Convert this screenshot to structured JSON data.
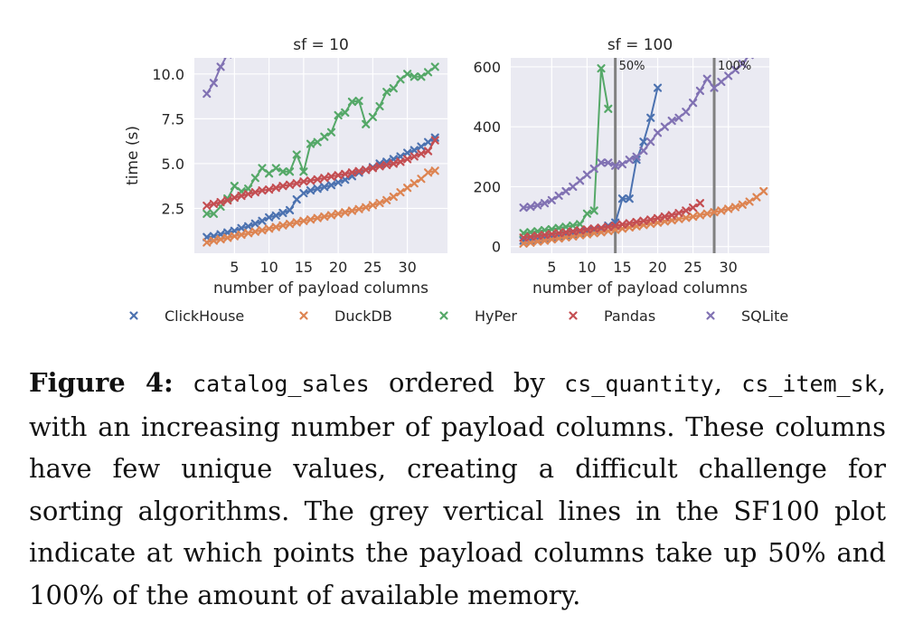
{
  "chart_data": [
    {
      "type": "line",
      "title": "sf = 10",
      "xlabel": "number of payload columns",
      "ylabel": "time (s)",
      "xticks": [
        5,
        10,
        15,
        20,
        25,
        30
      ],
      "yticks": [
        2.5,
        5.0,
        7.5,
        10.0
      ],
      "ytick_labels": [
        "2.5",
        "5.0",
        "7.5",
        "10.0"
      ],
      "xlim": [
        -0.8,
        35.8
      ],
      "ylim": [
        0,
        10.9
      ],
      "grid": true,
      "vlines": [],
      "series": [
        {
          "name": "ClickHouse",
          "color": "#4c72b0",
          "x": [
            1,
            2,
            3,
            4,
            5,
            6,
            7,
            8,
            9,
            10,
            11,
            12,
            13,
            14,
            15,
            16,
            17,
            18,
            19,
            20,
            21,
            22,
            23,
            24,
            25,
            26,
            27,
            28,
            29,
            30,
            31,
            32,
            33,
            34
          ],
          "y": [
            0.9,
            0.95,
            1.05,
            1.15,
            1.25,
            1.4,
            1.5,
            1.65,
            1.8,
            2.0,
            2.1,
            2.25,
            2.4,
            3.0,
            3.35,
            3.5,
            3.6,
            3.7,
            3.8,
            3.95,
            4.1,
            4.3,
            4.5,
            4.65,
            4.8,
            5.0,
            5.1,
            5.25,
            5.4,
            5.6,
            5.75,
            5.95,
            6.2,
            6.45
          ]
        },
        {
          "name": "DuckDB",
          "color": "#dd8452",
          "x": [
            1,
            2,
            3,
            4,
            5,
            6,
            7,
            8,
            9,
            10,
            11,
            12,
            13,
            14,
            15,
            16,
            17,
            18,
            19,
            20,
            21,
            22,
            23,
            24,
            25,
            26,
            27,
            28,
            29,
            30,
            31,
            32,
            33,
            34
          ],
          "y": [
            0.6,
            0.7,
            0.78,
            0.86,
            0.95,
            1.03,
            1.12,
            1.2,
            1.28,
            1.37,
            1.46,
            1.55,
            1.63,
            1.72,
            1.8,
            1.88,
            1.96,
            2.04,
            2.12,
            2.2,
            2.28,
            2.37,
            2.46,
            2.56,
            2.68,
            2.8,
            2.96,
            3.15,
            3.4,
            3.65,
            3.9,
            4.15,
            4.5,
            4.6
          ]
        },
        {
          "name": "HyPer",
          "color": "#55a868",
          "x": [
            1,
            2,
            3,
            4,
            5,
            6,
            7,
            8,
            9,
            10,
            11,
            12,
            13,
            14,
            15,
            16,
            17,
            18,
            19,
            20,
            21,
            22,
            23,
            24,
            25,
            26,
            27,
            28,
            29,
            30,
            31,
            32,
            33,
            34
          ],
          "y": [
            2.2,
            2.2,
            2.6,
            3.05,
            3.75,
            3.45,
            3.6,
            4.2,
            4.75,
            4.45,
            4.75,
            4.55,
            4.55,
            5.5,
            4.55,
            6.1,
            6.2,
            6.5,
            6.75,
            7.7,
            7.85,
            8.45,
            8.5,
            7.2,
            7.6,
            8.2,
            9.0,
            9.2,
            9.7,
            10.0,
            9.85,
            9.85,
            10.1,
            10.4
          ]
        },
        {
          "name": "Pandas",
          "color": "#c44e52",
          "x": [
            1,
            2,
            3,
            4,
            5,
            6,
            7,
            8,
            9,
            10,
            11,
            12,
            13,
            14,
            15,
            16,
            17,
            18,
            19,
            20,
            21,
            22,
            23,
            24,
            25,
            26,
            27,
            28,
            29,
            30,
            31,
            32,
            33,
            34
          ],
          "y": [
            2.65,
            2.75,
            2.85,
            2.95,
            3.1,
            3.2,
            3.3,
            3.4,
            3.5,
            3.55,
            3.65,
            3.75,
            3.82,
            3.9,
            4.0,
            4.05,
            4.12,
            4.2,
            4.28,
            4.35,
            4.42,
            4.5,
            4.58,
            4.65,
            4.75,
            4.85,
            4.92,
            5.0,
            5.1,
            5.25,
            5.4,
            5.55,
            5.7,
            6.3
          ]
        },
        {
          "name": "SQLite",
          "color": "#8172b3",
          "x": [
            1,
            2,
            3,
            4
          ],
          "y": [
            8.9,
            9.5,
            10.4,
            11.1
          ]
        }
      ]
    },
    {
      "type": "line",
      "title": "sf = 100",
      "xlabel": "number of payload columns",
      "ylabel": "",
      "xticks": [
        5,
        10,
        15,
        20,
        25,
        30
      ],
      "yticks": [
        0,
        200,
        400,
        600
      ],
      "ytick_labels": [
        "0",
        "200",
        "400",
        "600"
      ],
      "xlim": [
        -0.8,
        35.8
      ],
      "ylim": [
        -22,
        630
      ],
      "grid": true,
      "vlines": [
        {
          "x": 14,
          "label": "50%",
          "color": "#808080"
        },
        {
          "x": 28,
          "label": "100%",
          "color": "#808080"
        }
      ],
      "series": [
        {
          "name": "ClickHouse",
          "color": "#4c72b0",
          "x": [
            1,
            2,
            3,
            4,
            5,
            6,
            7,
            8,
            9,
            10,
            11,
            12,
            13,
            14,
            15,
            16,
            17,
            18,
            19,
            20
          ],
          "y": [
            20,
            22,
            25,
            28,
            31,
            34,
            38,
            42,
            46,
            50,
            55,
            60,
            70,
            80,
            160,
            160,
            290,
            350,
            430,
            530
          ]
        },
        {
          "name": "DuckDB",
          "color": "#dd8452",
          "x": [
            1,
            2,
            3,
            4,
            5,
            6,
            7,
            8,
            9,
            10,
            11,
            12,
            13,
            14,
            15,
            16,
            17,
            18,
            19,
            20,
            21,
            22,
            23,
            24,
            25,
            26,
            27,
            28,
            29,
            30,
            31,
            32,
            33,
            34,
            35
          ],
          "y": [
            10,
            13,
            17,
            20,
            24,
            27,
            31,
            34,
            38,
            41,
            45,
            48,
            52,
            56,
            60,
            64,
            68,
            72,
            76,
            80,
            84,
            88,
            92,
            96,
            100,
            105,
            110,
            115,
            120,
            126,
            132,
            140,
            150,
            165,
            185
          ]
        },
        {
          "name": "HyPer",
          "color": "#55a868",
          "x": [
            1,
            2,
            3,
            4,
            5,
            6,
            7,
            8,
            9,
            10,
            11,
            12,
            13
          ],
          "y": [
            45,
            48,
            51,
            55,
            58,
            62,
            66,
            70,
            75,
            110,
            120,
            595,
            460
          ]
        },
        {
          "name": "Pandas",
          "color": "#c44e52",
          "x": [
            1,
            2,
            3,
            4,
            5,
            6,
            7,
            8,
            9,
            10,
            11,
            12,
            13,
            14,
            15,
            16,
            17,
            18,
            19,
            20,
            21,
            22,
            23,
            24,
            25,
            26
          ],
          "y": [
            30,
            33,
            36,
            39,
            42,
            45,
            48,
            51,
            54,
            57,
            60,
            63,
            66,
            70,
            74,
            78,
            82,
            86,
            90,
            95,
            100,
            105,
            112,
            120,
            130,
            145
          ]
        },
        {
          "name": "SQLite",
          "color": "#8172b3",
          "x": [
            1,
            2,
            3,
            4,
            5,
            6,
            7,
            8,
            9,
            10,
            11,
            12,
            13,
            14,
            15,
            16,
            17,
            18,
            19,
            20,
            21,
            22,
            23,
            24,
            25,
            26,
            27,
            28,
            29,
            30,
            31,
            32,
            33
          ],
          "y": [
            130,
            133,
            138,
            145,
            155,
            170,
            185,
            200,
            220,
            240,
            260,
            280,
            280,
            270,
            275,
            290,
            300,
            320,
            350,
            380,
            400,
            420,
            430,
            450,
            480,
            520,
            560,
            530,
            550,
            570,
            590,
            610,
            640
          ]
        }
      ]
    }
  ],
  "legend": [
    {
      "name": "ClickHouse",
      "color": "#4c72b0"
    },
    {
      "name": "DuckDB",
      "color": "#dd8452"
    },
    {
      "name": "HyPer",
      "color": "#55a868"
    },
    {
      "name": "Pandas",
      "color": "#c44e52"
    },
    {
      "name": "SQLite",
      "color": "#8172b3"
    }
  ],
  "caption": {
    "label": "Figure 4:",
    "code1": "catalog_sales",
    "t1": " ordered by ",
    "code2": "cs_quantity",
    "t2": ", ",
    "code3": "cs_item_sk",
    "t3": ", with an increasing number of payload columns.  These columns have few unique values, creating a difficult challenge for sorting algorithms.  The grey vertical lines in the SF100 plot indicate at which points the payload columns take up 50% and 100% of the amount of available memory."
  }
}
